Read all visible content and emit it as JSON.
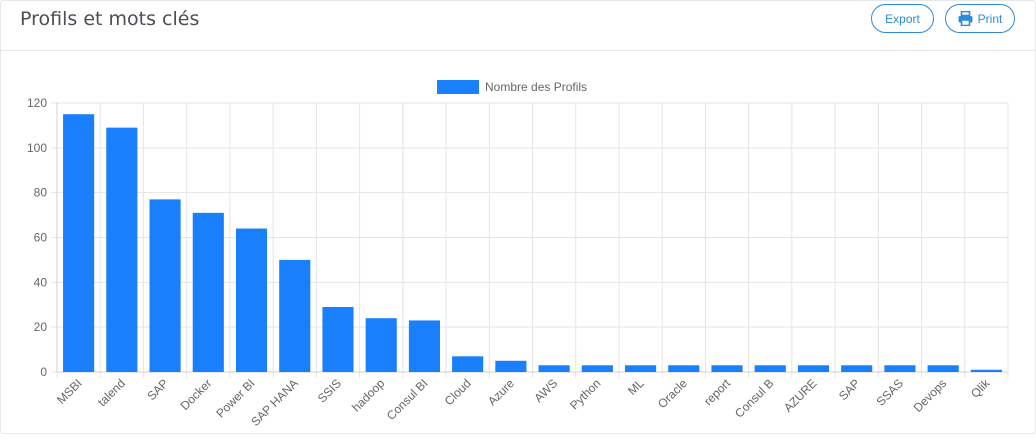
{
  "header": {
    "title": "Profils et mots clés",
    "export_label": "Export",
    "print_label": "Print"
  },
  "colors": {
    "accent": "#2e8bd9",
    "bar": "#1a7ffb",
    "grid": "#e5e5e5",
    "text": "#666666"
  },
  "chart_data": {
    "type": "bar",
    "categories": [
      "MSBI",
      "talend",
      "SAP",
      "Docker",
      "Power BI",
      "SAP HANA",
      "SSIS",
      "hadoop",
      "Consul BI",
      "Cloud",
      "Azure",
      "AWS",
      "Python",
      "ML",
      "Oracle",
      "report",
      "Consul B",
      "AZURE",
      "SAP",
      "SSAS",
      "Devops",
      "Qlik"
    ],
    "series": [
      {
        "name": "Nombre des Profils",
        "values": [
          115,
          109,
          77,
          71,
          64,
          50,
          29,
          24,
          23,
          7,
          5,
          3,
          3,
          3,
          3,
          3,
          3,
          3,
          3,
          3,
          3,
          1
        ]
      }
    ],
    "ylim": [
      0,
      120
    ],
    "yticks": [
      0,
      20,
      40,
      60,
      80,
      100,
      120
    ],
    "grid": true,
    "legend": "top-center"
  }
}
